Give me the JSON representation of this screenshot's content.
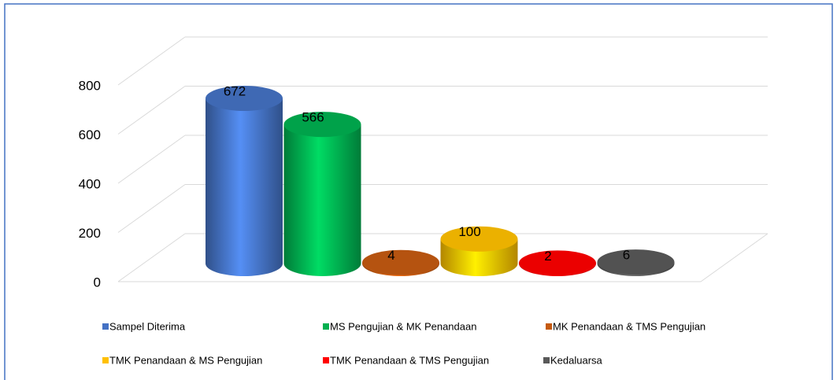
{
  "chart_data": {
    "type": "bar",
    "series": [
      {
        "name": "Sampel Diterima",
        "color": "#4472c4",
        "values": [
          672
        ]
      },
      {
        "name": "MS Pengujian & MK Penandaan",
        "color": "#00b050",
        "values": [
          566
        ]
      },
      {
        "name": "MK Penandaan & TMS Pengujian",
        "color": "#c55a11",
        "values": [
          4
        ]
      },
      {
        "name": "TMK Penandaan & MS Pengujian",
        "color": "#ffc000",
        "values": [
          100
        ]
      },
      {
        "name": "TMK Penandaan & TMS Pengujian",
        "color": "#ff0000",
        "values": [
          2
        ]
      },
      {
        "name": "Kedaluarsa",
        "color": "#595959",
        "values": [
          6
        ]
      }
    ],
    "ylim": [
      0,
      800
    ],
    "yticks": [
      0,
      200,
      400,
      600,
      800
    ],
    "grid": true
  }
}
